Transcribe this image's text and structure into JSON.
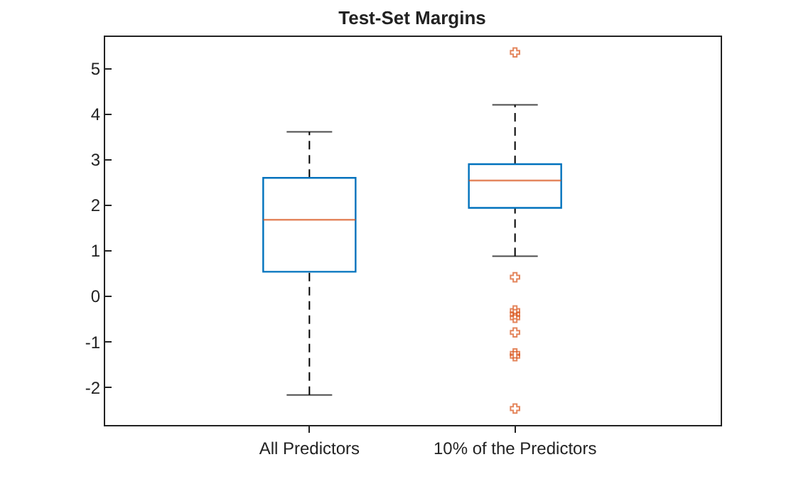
{
  "chart_data": {
    "type": "box",
    "title": "Test-Set Margins",
    "categories": [
      "All Predictors",
      "10% of the Predictors"
    ],
    "boxes": [
      {
        "low": -2.17,
        "q1": 0.53,
        "median": 1.67,
        "q3": 2.59,
        "high": 3.6
      },
      {
        "low": 0.87,
        "q1": 1.93,
        "median": 2.53,
        "q3": 2.89,
        "high": 4.19,
        "outliers": [
          5.34,
          0.41,
          -0.32,
          -0.4,
          -0.48,
          -0.8,
          -1.26,
          -1.32,
          -2.47
        ]
      }
    ],
    "color": "#0072bd",
    "ylim": [
      -2.83,
      5.71
    ],
    "yticks": [
      -2,
      -1,
      0,
      1,
      2,
      3,
      4,
      5
    ],
    "grid": false,
    "marker": "cross",
    "line_style": "dashed"
  }
}
